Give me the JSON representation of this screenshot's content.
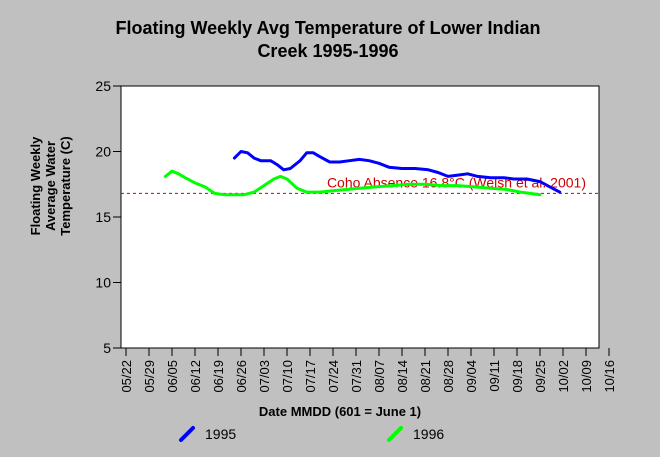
{
  "chart_data": {
    "type": "line",
    "title_lines": [
      "Floating Weekly Avg Temperature of Lower Indian",
      "Creek 1995-1996"
    ],
    "xlabel": "Date MMDD (601 = June 1)",
    "ylabel_lines": [
      "Floating Weekly",
      "Average Water",
      "Temperature (C)"
    ],
    "ylim": [
      5,
      25
    ],
    "yticks": [
      5,
      10,
      15,
      20,
      25
    ],
    "x_categories": [
      "05/22",
      "05/29",
      "06/05",
      "06/12",
      "06/19",
      "06/26",
      "07/03",
      "07/10",
      "07/17",
      "07/24",
      "07/31",
      "08/07",
      "08/14",
      "08/21",
      "08/28",
      "09/04",
      "09/11",
      "09/18",
      "09/25",
      "10/02",
      "10/09",
      "10/16"
    ],
    "x_day_start": "05/22",
    "grid": false,
    "reference_line": {
      "value": 16.8,
      "label": "Coho Absence 16.8°C (Welsh et al. 2001)",
      "color": "#cc0000"
    },
    "series": [
      {
        "name": "1995",
        "color": "#0000ff",
        "points": [
          [
            "06/24",
            19.5
          ],
          [
            "06/26",
            20.0
          ],
          [
            "06/28",
            19.9
          ],
          [
            "06/30",
            19.5
          ],
          [
            "07/02",
            19.3
          ],
          [
            "07/05",
            19.3
          ],
          [
            "07/07",
            19.0
          ],
          [
            "07/09",
            18.6
          ],
          [
            "07/11",
            18.7
          ],
          [
            "07/14",
            19.3
          ],
          [
            "07/16",
            19.9
          ],
          [
            "07/18",
            19.9
          ],
          [
            "07/20",
            19.6
          ],
          [
            "07/23",
            19.2
          ],
          [
            "07/26",
            19.2
          ],
          [
            "07/29",
            19.3
          ],
          [
            "08/01",
            19.4
          ],
          [
            "08/04",
            19.3
          ],
          [
            "08/07",
            19.1
          ],
          [
            "08/10",
            18.8
          ],
          [
            "08/14",
            18.7
          ],
          [
            "08/18",
            18.7
          ],
          [
            "08/22",
            18.6
          ],
          [
            "08/25",
            18.4
          ],
          [
            "08/28",
            18.1
          ],
          [
            "08/31",
            18.2
          ],
          [
            "09/03",
            18.3
          ],
          [
            "09/06",
            18.1
          ],
          [
            "09/10",
            18.0
          ],
          [
            "09/14",
            18.0
          ],
          [
            "09/17",
            17.9
          ],
          [
            "09/21",
            17.9
          ],
          [
            "09/25",
            17.7
          ],
          [
            "09/28",
            17.3
          ],
          [
            "10/01",
            16.9
          ]
        ]
      },
      {
        "name": "1996",
        "color": "#00ff00",
        "points": [
          [
            "06/03",
            18.1
          ],
          [
            "06/05",
            18.5
          ],
          [
            "06/07",
            18.3
          ],
          [
            "06/09",
            18.0
          ],
          [
            "06/12",
            17.6
          ],
          [
            "06/15",
            17.3
          ],
          [
            "06/18",
            16.8
          ],
          [
            "06/21",
            16.7
          ],
          [
            "06/24",
            16.7
          ],
          [
            "06/27",
            16.7
          ],
          [
            "06/30",
            16.9
          ],
          [
            "07/03",
            17.4
          ],
          [
            "07/06",
            17.9
          ],
          [
            "07/08",
            18.1
          ],
          [
            "07/10",
            17.9
          ],
          [
            "07/13",
            17.2
          ],
          [
            "07/16",
            16.9
          ],
          [
            "07/20",
            16.9
          ],
          [
            "07/24",
            17.0
          ],
          [
            "07/28",
            17.1
          ],
          [
            "08/01",
            17.2
          ],
          [
            "08/06",
            17.3
          ],
          [
            "08/11",
            17.4
          ],
          [
            "08/16",
            17.5
          ],
          [
            "08/21",
            17.5
          ],
          [
            "08/26",
            17.4
          ],
          [
            "08/31",
            17.4
          ],
          [
            "09/05",
            17.3
          ],
          [
            "09/10",
            17.2
          ],
          [
            "09/15",
            17.1
          ],
          [
            "09/19",
            16.9
          ],
          [
            "09/22",
            16.8
          ],
          [
            "09/25",
            16.7
          ]
        ]
      }
    ],
    "legend_position": "bottom"
  }
}
